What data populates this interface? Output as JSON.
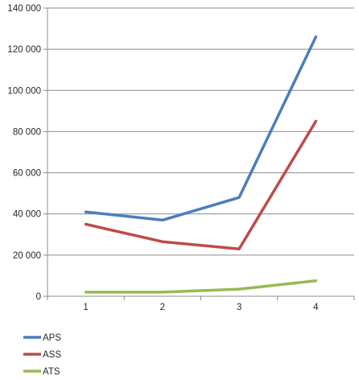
{
  "chart_data": {
    "type": "line",
    "title": "",
    "xlabel": "",
    "ylabel": "",
    "categories": [
      "1",
      "2",
      "3",
      "4"
    ],
    "ylim": [
      0,
      140000
    ],
    "ytick_step": 20000,
    "ytick_labels": [
      "0",
      "20 000",
      "40 000",
      "60 000",
      "80 000",
      "100 000",
      "120 000",
      "140 000"
    ],
    "grid": "horizontal",
    "legend_position": "bottom-left",
    "series": [
      {
        "name": "APS",
        "color": "#4a7ebb",
        "values": [
          41000,
          37000,
          48000,
          126000
        ]
      },
      {
        "name": "ASS",
        "color": "#be4b48",
        "values": [
          35000,
          26500,
          23000,
          85000
        ]
      },
      {
        "name": "ATS",
        "color": "#98b954",
        "values": [
          2000,
          2000,
          3500,
          7500
        ]
      }
    ]
  }
}
